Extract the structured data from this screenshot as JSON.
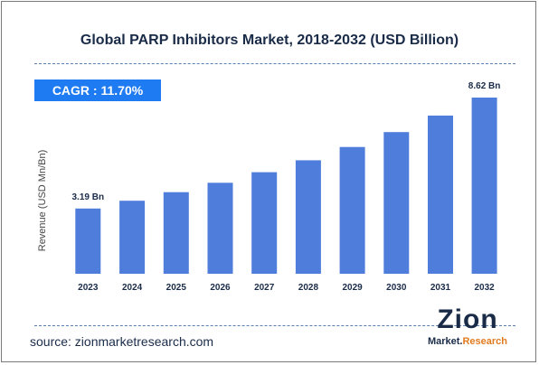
{
  "colors": {
    "bar": "#4f7ddb",
    "cagr_bg": "#1f7bf2",
    "title": "#1a2b48",
    "logo_accent": "#e07b1f"
  },
  "chart_data": {
    "type": "bar",
    "title": "Global PARP Inhibitors Market, 2018-2032 (USD Billion)",
    "ylabel": "Revenue (USD Mn/Bn)",
    "xlabel": "",
    "categories": [
      "2023",
      "2024",
      "2025",
      "2026",
      "2027",
      "2028",
      "2029",
      "2030",
      "2031",
      "2032"
    ],
    "values": [
      3.19,
      3.57,
      3.99,
      4.45,
      4.97,
      5.55,
      6.2,
      6.93,
      7.74,
      8.62
    ],
    "ylim": [
      0,
      8.62
    ],
    "grid": false,
    "data_labels": [
      {
        "category": "2023",
        "text": "3.19 Bn"
      },
      {
        "category": "2032",
        "text": "8.62 Bn"
      }
    ],
    "annotation": "CAGR : 11.70%"
  },
  "source": "source: zionmarketresearch.com",
  "logo": {
    "top": "Zion",
    "bottom_left": "Market.",
    "bottom_right": "Research"
  }
}
